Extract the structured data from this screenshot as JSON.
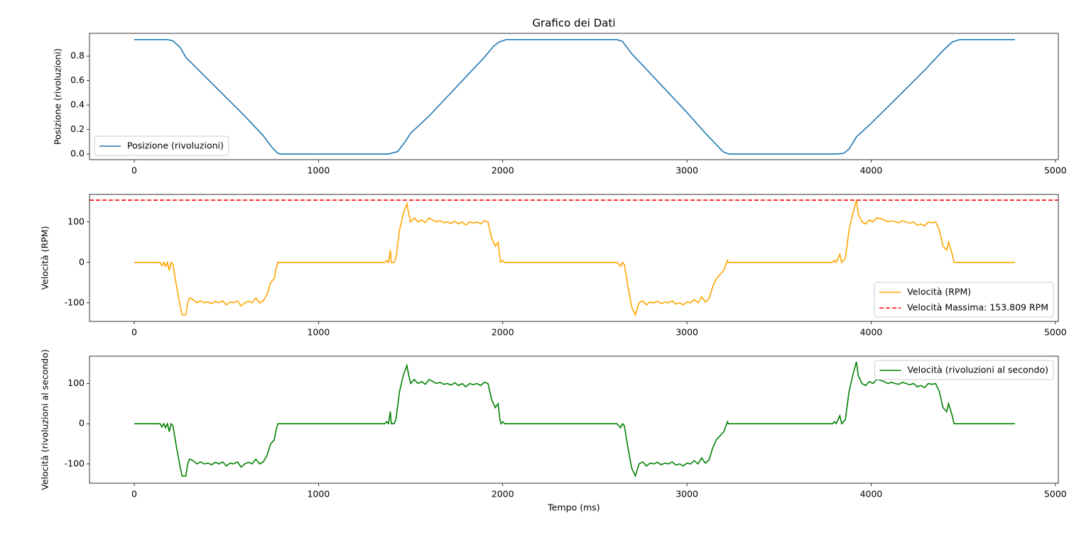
{
  "chart_data": [
    {
      "type": "line",
      "title": "Grafico dei Dati",
      "ylabel": "Posizione (rivoluzioni)",
      "x": [
        0,
        180,
        210,
        250,
        280,
        320,
        400,
        500,
        600,
        700,
        750,
        780,
        800,
        1000,
        1200,
        1380,
        1430,
        1470,
        1500,
        1600,
        1700,
        1800,
        1900,
        1950,
        1980,
        2020,
        2300,
        2620,
        2650,
        2700,
        2800,
        2900,
        3000,
        3100,
        3170,
        3200,
        3230,
        3500,
        3800,
        3850,
        3880,
        3920,
        4000,
        4100,
        4200,
        4300,
        4400,
        4440,
        4480,
        4780
      ],
      "series": [
        {
          "name": "Posizione (rivoluzioni)",
          "color": "#1f77b4",
          "values": [
            0.935,
            0.935,
            0.925,
            0.87,
            0.79,
            0.73,
            0.61,
            0.46,
            0.31,
            0.15,
            0.05,
            0.005,
            0,
            0,
            0,
            0,
            0.02,
            0.1,
            0.17,
            0.31,
            0.47,
            0.63,
            0.79,
            0.88,
            0.915,
            0.935,
            0.935,
            0.935,
            0.92,
            0.82,
            0.66,
            0.5,
            0.34,
            0.17,
            0.06,
            0.015,
            0,
            0,
            0,
            0.005,
            0.04,
            0.14,
            0.25,
            0.4,
            0.55,
            0.7,
            0.86,
            0.915,
            0.935,
            0.935
          ]
        }
      ],
      "xlim": [
        -243,
        5016
      ],
      "xticks": [
        0,
        1000,
        2000,
        3000,
        4000,
        5000
      ],
      "ylim": [
        -0.046,
        0.986
      ],
      "yticks": [
        {
          "value": 0,
          "label": "0.0"
        },
        0.2,
        0.4,
        0.6,
        0.8
      ],
      "legend": "lower left"
    },
    {
      "type": "line",
      "ylabel": "Velocità (RPM)",
      "x": [
        0,
        120,
        140,
        150,
        160,
        170,
        180,
        190,
        200,
        210,
        230,
        250,
        260,
        280,
        290,
        300,
        320,
        340,
        360,
        380,
        400,
        420,
        440,
        460,
        480,
        500,
        520,
        540,
        560,
        580,
        600,
        620,
        640,
        660,
        680,
        700,
        720,
        740,
        760,
        770,
        780,
        1000,
        1200,
        1360,
        1370,
        1380,
        1390,
        1395,
        1410,
        1420,
        1440,
        1460,
        1480,
        1490,
        1500,
        1520,
        1540,
        1560,
        1580,
        1600,
        1620,
        1640,
        1660,
        1680,
        1700,
        1720,
        1740,
        1760,
        1780,
        1800,
        1820,
        1840,
        1860,
        1880,
        1900,
        1920,
        1940,
        1960,
        1975,
        1985,
        1990,
        2000,
        2010,
        2400,
        2620,
        2640,
        2650,
        2660,
        2680,
        2700,
        2720,
        2740,
        2760,
        2780,
        2800,
        2820,
        2840,
        2860,
        2880,
        2900,
        2920,
        2940,
        2960,
        2980,
        3000,
        3020,
        3040,
        3060,
        3080,
        3100,
        3120,
        3140,
        3160,
        3180,
        3200,
        3220,
        3225,
        3500,
        3790,
        3800,
        3810,
        3830,
        3840,
        3860,
        3880,
        3900,
        3920,
        3930,
        3950,
        3970,
        3990,
        4010,
        4030,
        4050,
        4070,
        4090,
        4110,
        4130,
        4150,
        4170,
        4190,
        4210,
        4230,
        4250,
        4270,
        4290,
        4310,
        4330,
        4350,
        4370,
        4390,
        4410,
        4420,
        4440,
        4450,
        4780
      ],
      "series": [
        {
          "name": "Velocità (RPM)",
          "color": "orange",
          "values": [
            0,
            0,
            0,
            -8,
            0,
            -10,
            0,
            -20,
            0,
            -5,
            -60,
            -110,
            -130,
            -130,
            -100,
            -88,
            -92,
            -100,
            -95,
            -100,
            -98,
            -102,
            -96,
            -100,
            -95,
            -105,
            -98,
            -100,
            -95,
            -108,
            -100,
            -96,
            -100,
            -88,
            -100,
            -95,
            -80,
            -50,
            -40,
            -15,
            0,
            0,
            0,
            0,
            5,
            0,
            30,
            0,
            0,
            10,
            80,
            120,
            145,
            120,
            100,
            110,
            100,
            105,
            98,
            110,
            105,
            100,
            103,
            98,
            100,
            96,
            102,
            95,
            100,
            92,
            100,
            97,
            100,
            95,
            103,
            100,
            60,
            40,
            50,
            10,
            0,
            5,
            0,
            0,
            0,
            -10,
            0,
            -5,
            -60,
            -110,
            -130,
            -100,
            -95,
            -105,
            -98,
            -100,
            -96,
            -102,
            -98,
            -100,
            -95,
            -103,
            -100,
            -105,
            -98,
            -100,
            -92,
            -100,
            -85,
            -98,
            -90,
            -60,
            -40,
            -30,
            -20,
            5,
            0,
            0,
            0,
            5,
            0,
            20,
            0,
            10,
            80,
            120,
            154,
            120,
            100,
            95,
            105,
            100,
            110,
            108,
            105,
            100,
            103,
            100,
            98,
            103,
            100,
            97,
            100,
            92,
            95,
            90,
            100,
            98,
            100,
            80,
            40,
            30,
            50,
            20,
            0,
            0
          ]
        }
      ],
      "hline": {
        "name": "Velocità Massima: 153.809 RPM",
        "value": 153.809,
        "color": "red"
      },
      "xlim": [
        -243,
        5016
      ],
      "xticks": [
        0,
        1000,
        2000,
        3000,
        4000,
        5000
      ],
      "ylim": [
        -146,
        168
      ],
      "yticks": [
        -100,
        0,
        100
      ],
      "legend": "lower right"
    },
    {
      "type": "line",
      "ylabel": "Velocità (rivoluzioni al secondo)",
      "xlabel": "Tempo (ms)",
      "x": [
        0,
        120,
        140,
        150,
        160,
        170,
        180,
        190,
        200,
        210,
        230,
        250,
        260,
        280,
        290,
        300,
        320,
        340,
        360,
        380,
        400,
        420,
        440,
        460,
        480,
        500,
        520,
        540,
        560,
        580,
        600,
        620,
        640,
        660,
        680,
        700,
        720,
        740,
        760,
        770,
        780,
        1000,
        1200,
        1360,
        1370,
        1380,
        1390,
        1395,
        1410,
        1420,
        1440,
        1460,
        1480,
        1490,
        1500,
        1520,
        1540,
        1560,
        1580,
        1600,
        1620,
        1640,
        1660,
        1680,
        1700,
        1720,
        1740,
        1760,
        1780,
        1800,
        1820,
        1840,
        1860,
        1880,
        1900,
        1920,
        1940,
        1960,
        1975,
        1985,
        1990,
        2000,
        2010,
        2400,
        2620,
        2640,
        2650,
        2660,
        2680,
        2700,
        2720,
        2740,
        2760,
        2780,
        2800,
        2820,
        2840,
        2860,
        2880,
        2900,
        2920,
        2940,
        2960,
        2980,
        3000,
        3020,
        3040,
        3060,
        3080,
        3100,
        3120,
        3140,
        3160,
        3180,
        3200,
        3220,
        3225,
        3500,
        3790,
        3800,
        3810,
        3830,
        3840,
        3860,
        3880,
        3900,
        3920,
        3930,
        3950,
        3970,
        3990,
        4010,
        4030,
        4050,
        4070,
        4090,
        4110,
        4130,
        4150,
        4170,
        4190,
        4210,
        4230,
        4250,
        4270,
        4290,
        4310,
        4330,
        4350,
        4370,
        4390,
        4410,
        4420,
        4440,
        4450,
        4780
      ],
      "series": [
        {
          "name": "Velocità (rivoluzioni al secondo)",
          "color": "green",
          "values": [
            0,
            0,
            0,
            -8,
            0,
            -10,
            0,
            -20,
            0,
            -5,
            -60,
            -110,
            -130,
            -130,
            -100,
            -88,
            -92,
            -100,
            -95,
            -100,
            -98,
            -102,
            -96,
            -100,
            -95,
            -105,
            -98,
            -100,
            -95,
            -108,
            -100,
            -96,
            -100,
            -88,
            -100,
            -95,
            -80,
            -50,
            -40,
            -15,
            0,
            0,
            0,
            0,
            5,
            0,
            30,
            0,
            0,
            10,
            80,
            120,
            145,
            120,
            100,
            110,
            100,
            105,
            98,
            110,
            105,
            100,
            103,
            98,
            100,
            96,
            102,
            95,
            100,
            92,
            100,
            97,
            100,
            95,
            103,
            100,
            60,
            40,
            50,
            10,
            0,
            5,
            0,
            0,
            0,
            -10,
            0,
            -5,
            -60,
            -110,
            -130,
            -100,
            -95,
            -105,
            -98,
            -100,
            -96,
            -102,
            -98,
            -100,
            -95,
            -103,
            -100,
            -105,
            -98,
            -100,
            -92,
            -100,
            -85,
            -98,
            -90,
            -60,
            -40,
            -30,
            -20,
            5,
            0,
            0,
            0,
            5,
            0,
            20,
            0,
            10,
            80,
            120,
            154,
            120,
            100,
            95,
            105,
            100,
            110,
            108,
            105,
            100,
            103,
            100,
            98,
            103,
            100,
            97,
            100,
            92,
            95,
            90,
            100,
            98,
            100,
            80,
            40,
            30,
            50,
            20,
            0,
            0
          ]
        }
      ],
      "xlim": [
        -243,
        5016
      ],
      "xticks": [
        0,
        1000,
        2000,
        3000,
        4000,
        5000
      ],
      "ylim": [
        -148,
        168
      ],
      "yticks": [
        -100,
        0,
        100
      ],
      "legend": "upper right"
    }
  ]
}
